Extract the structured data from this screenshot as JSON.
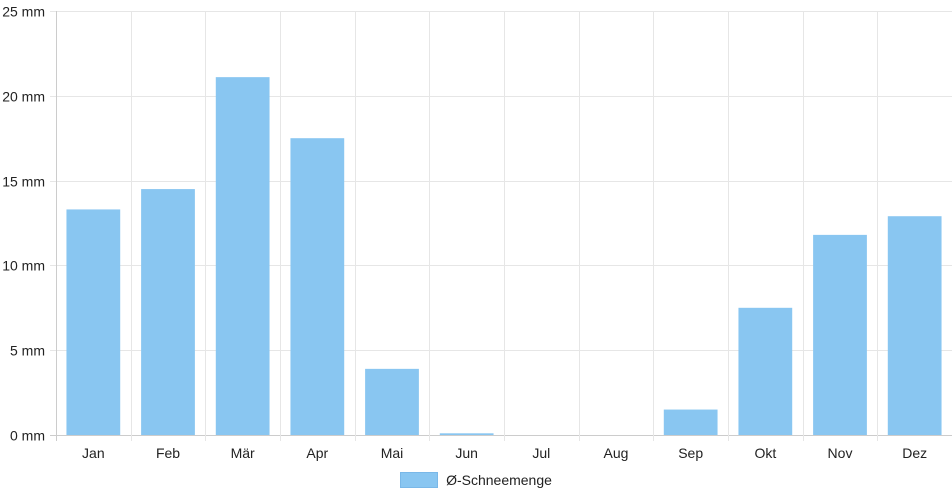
{
  "chart_data": {
    "type": "bar",
    "categories": [
      "Jan",
      "Feb",
      "Mär",
      "Apr",
      "Mai",
      "Jun",
      "Jul",
      "Aug",
      "Sep",
      "Okt",
      "Nov",
      "Dez"
    ],
    "series": [
      {
        "name": "Ø-Schneemenge",
        "values": [
          13.3,
          14.5,
          21.1,
          17.5,
          3.9,
          0.1,
          0,
          0,
          1.5,
          7.5,
          11.8,
          12.9
        ],
        "color": "#89c6f1"
      }
    ],
    "ylim": [
      0,
      25
    ],
    "yticks": [
      0,
      5,
      10,
      15,
      20,
      25
    ],
    "ytick_labels": [
      "0 mm",
      "5 mm",
      "10 mm",
      "15 mm",
      "20 mm",
      "25 mm"
    ],
    "grid": true,
    "legend_position": "bottom-center"
  }
}
